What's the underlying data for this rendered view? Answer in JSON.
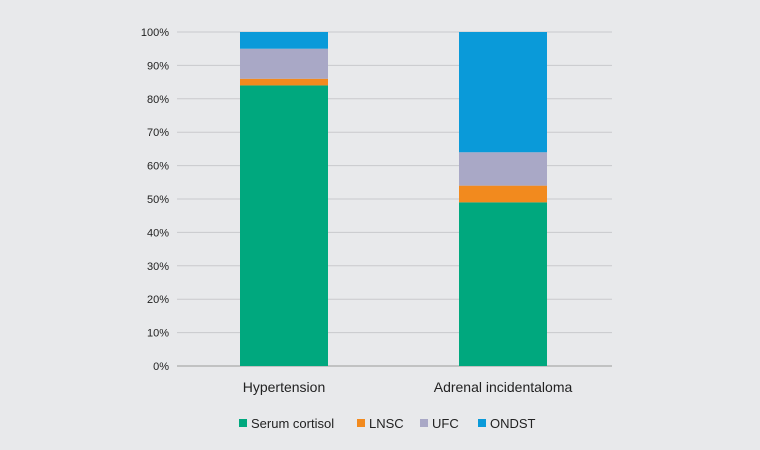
{
  "chart_data": {
    "type": "bar",
    "stacked": true,
    "percent": true,
    "categories": [
      "Hypertension",
      "Adrenal incidentaloma"
    ],
    "series": [
      {
        "name": "Serum cortisol",
        "color": "#00a87e",
        "values": [
          84,
          49
        ]
      },
      {
        "name": "LNSC",
        "color": "#f28a1e",
        "values": [
          2,
          5
        ]
      },
      {
        "name": "UFC",
        "color": "#a9a8c6",
        "values": [
          9,
          10
        ]
      },
      {
        "name": "ONDST",
        "color": "#0a9ad9",
        "values": [
          5,
          36
        ]
      }
    ],
    "ylim": [
      0,
      100
    ],
    "yticks": [
      "0%",
      "10%",
      "20%",
      "30%",
      "40%",
      "50%",
      "60%",
      "70%",
      "80%",
      "90%",
      "100%"
    ],
    "grid": true,
    "legend": "bottom",
    "title": "",
    "xlabel": "",
    "ylabel": ""
  }
}
